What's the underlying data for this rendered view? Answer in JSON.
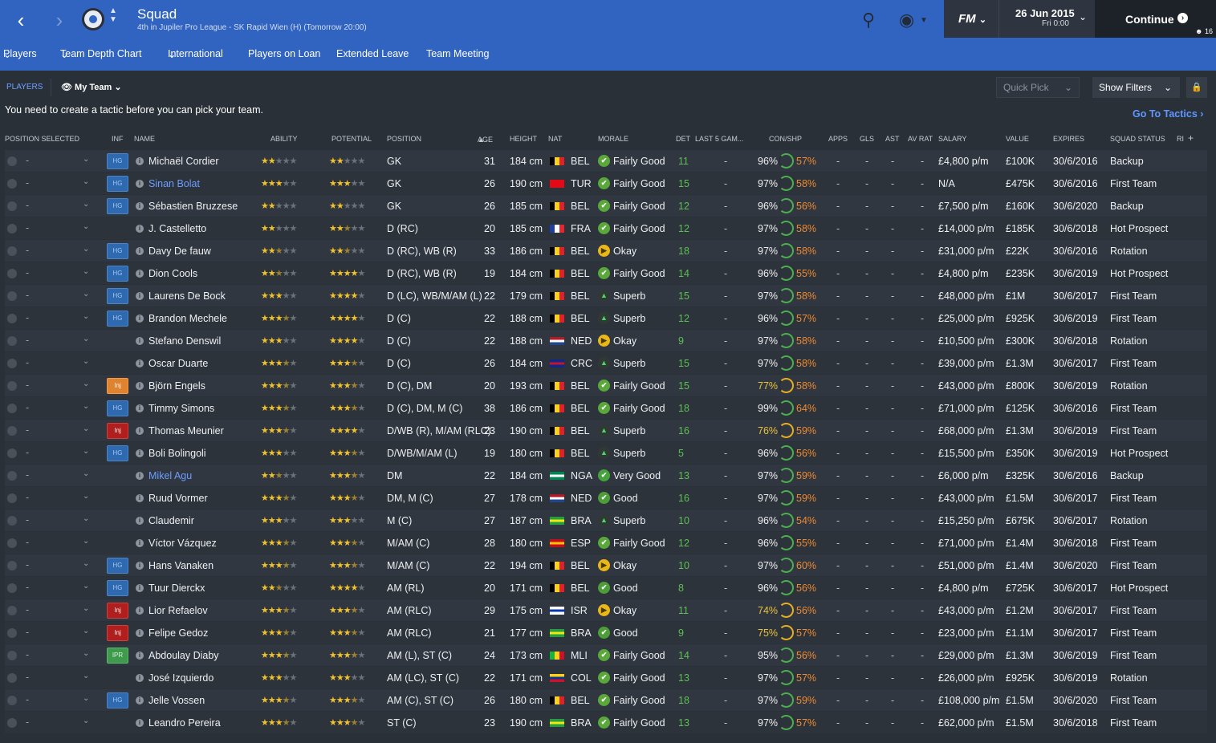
{
  "header": {
    "title": "Squad",
    "subtitle": "4th in Jupiler Pro League - SK Rapid Wien (H) (Tomorrow 20:00)",
    "fm_label": "FM",
    "date": "26 Jun 2015",
    "time": "Fri 0:00",
    "continue_label": "Continue",
    "inbox_count": "16"
  },
  "subnav": [
    "Players",
    "Team Depth Chart",
    "International",
    "Players on Loan",
    "Extended Leave",
    "Team Meeting"
  ],
  "filterbar": {
    "tab": "PLAYERS",
    "view": "My Team",
    "quick_pick": "Quick Pick",
    "show_filters": "Show Filters"
  },
  "notice": "You need to create a tactic before you can pick your team.",
  "go_to_tactics": "Go To Tactics",
  "columns": [
    "POSITION SELECTED",
    "INF",
    "NAME",
    "ABILITY",
    "POTENTIAL",
    "POSITION",
    "AGE",
    "HEIGHT",
    "NAT",
    "MORALE",
    "DET",
    "LAST 5 GAM...",
    "CON/SHP",
    "APPS",
    "GLS",
    "AST",
    "AV RAT",
    "SALARY",
    "VALUE",
    "EXPIRES",
    "SQUAD STATUS",
    "RI"
  ],
  "players": [
    {
      "inf": "HG",
      "name": "Michaël Cordier",
      "ability": 2,
      "potential": 2,
      "position": "GK",
      "age": "31",
      "height": "184 cm",
      "nat": "BEL",
      "morale": "Fairly Good",
      "det": "11",
      "con": "96%",
      "shp": "57%",
      "salary": "£4,800 p/m",
      "value": "£100K",
      "expires": "30/6/2016",
      "status": "Backup"
    },
    {
      "inf": "HG",
      "name": "Sinan Bolat",
      "link": true,
      "ability": 3,
      "potential": 3,
      "position": "GK",
      "age": "26",
      "height": "190 cm",
      "nat": "TUR",
      "morale": "Fairly Good",
      "det": "15",
      "con": "97%",
      "shp": "58%",
      "salary": "N/A",
      "value": "£475K",
      "expires": "30/6/2016",
      "status": "First Team"
    },
    {
      "inf": "HG",
      "name": "Sébastien Bruzzese",
      "ability": 2,
      "potential": 2,
      "position": "GK",
      "age": "26",
      "height": "185 cm",
      "nat": "BEL",
      "morale": "Fairly Good",
      "det": "12",
      "con": "96%",
      "shp": "56%",
      "salary": "£7,500 p/m",
      "value": "£160K",
      "expires": "30/6/2020",
      "status": "Backup"
    },
    {
      "inf": "",
      "name": "J. Castelletto",
      "ability": 2,
      "potential": 2.5,
      "position": "D (RC)",
      "age": "20",
      "height": "185 cm",
      "nat": "FRA",
      "morale": "Fairly Good",
      "det": "12",
      "con": "97%",
      "shp": "58%",
      "salary": "£14,000 p/m",
      "value": "£185K",
      "expires": "30/6/2018",
      "status": "Hot Prospect"
    },
    {
      "inf": "HG",
      "name": "Davy De fauw",
      "ability": 2.5,
      "potential": 2.5,
      "position": "D (RC), WB (R)",
      "age": "33",
      "height": "186 cm",
      "nat": "BEL",
      "morale": "Okay",
      "det": "18",
      "con": "97%",
      "shp": "58%",
      "salary": "£31,000 p/m",
      "value": "£22K",
      "expires": "30/6/2016",
      "status": "Rotation"
    },
    {
      "inf": "HG",
      "name": "Dion Cools",
      "ability": 2.5,
      "potential": 4,
      "position": "D (RC), WB (R)",
      "age": "19",
      "height": "184 cm",
      "nat": "BEL",
      "morale": "Fairly Good",
      "det": "14",
      "con": "96%",
      "shp": "55%",
      "salary": "£4,800 p/m",
      "value": "£235K",
      "expires": "30/6/2019",
      "status": "Hot Prospect"
    },
    {
      "inf": "HG",
      "name": "Laurens De Bock",
      "ability": 3,
      "potential": 4,
      "position": "D (LC), WB/M/AM (L)",
      "age": "22",
      "height": "179 cm",
      "nat": "BEL",
      "morale": "Superb",
      "det": "15",
      "con": "97%",
      "shp": "58%",
      "salary": "£48,000 p/m",
      "value": "£1M",
      "expires": "30/6/2017",
      "status": "First Team"
    },
    {
      "inf": "HG",
      "name": "Brandon Mechele",
      "ability": 3.5,
      "potential": 4,
      "position": "D (C)",
      "age": "22",
      "height": "188 cm",
      "nat": "BEL",
      "morale": "Superb",
      "det": "12",
      "con": "96%",
      "shp": "57%",
      "salary": "£25,000 p/m",
      "value": "£925K",
      "expires": "30/6/2019",
      "status": "First Team"
    },
    {
      "inf": "",
      "name": "Stefano Denswil",
      "ability": 3,
      "potential": 4,
      "position": "D (C)",
      "age": "22",
      "height": "188 cm",
      "nat": "NED",
      "morale": "Okay",
      "det": "9",
      "con": "97%",
      "shp": "58%",
      "salary": "£10,500 p/m",
      "value": "£300K",
      "expires": "30/6/2018",
      "status": "Rotation"
    },
    {
      "inf": "",
      "name": "Oscar Duarte",
      "ability": 3.5,
      "potential": 3.5,
      "position": "D (C)",
      "age": "26",
      "height": "184 cm",
      "nat": "CRC",
      "morale": "Superb",
      "det": "15",
      "con": "97%",
      "shp": "58%",
      "salary": "£39,000 p/m",
      "value": "£1.3M",
      "expires": "30/6/2017",
      "status": "First Team"
    },
    {
      "inf": "Inj",
      "injtype": "injo",
      "name": "Björn Engels",
      "ability": 3.5,
      "potential": 3.5,
      "position": "D (C), DM",
      "age": "20",
      "height": "193 cm",
      "nat": "BEL",
      "morale": "Fairly Good",
      "det": "15",
      "con": "77%",
      "conwarn": true,
      "shp": "58%",
      "salary": "£43,000 p/m",
      "value": "£800K",
      "expires": "30/6/2019",
      "status": "Rotation"
    },
    {
      "inf": "HG",
      "name": "Timmy Simons",
      "ability": 3.5,
      "potential": 3.5,
      "position": "D (C), DM, M (C)",
      "age": "38",
      "height": "186 cm",
      "nat": "BEL",
      "morale": "Fairly Good",
      "det": "18",
      "con": "99%",
      "shp": "64%",
      "salary": "£71,000 p/m",
      "value": "£125K",
      "expires": "30/6/2016",
      "status": "First Team"
    },
    {
      "inf": "Inj",
      "injtype": "inj",
      "name": "Thomas Meunier",
      "ability": 3.5,
      "potential": 4,
      "position": "D/WB (R), M/AM (RLC)",
      "age": "23",
      "height": "190 cm",
      "nat": "BEL",
      "morale": "Superb",
      "det": "16",
      "con": "76%",
      "conwarn": true,
      "shp": "59%",
      "salary": "£68,000 p/m",
      "value": "£1.3M",
      "expires": "30/6/2019",
      "status": "First Team"
    },
    {
      "inf": "HG",
      "name": "Boli Bolingoli",
      "ability": 3,
      "potential": 3.5,
      "position": "D/WB/M/AM (L)",
      "age": "19",
      "height": "180 cm",
      "nat": "BEL",
      "morale": "Superb",
      "det": "5",
      "con": "96%",
      "shp": "56%",
      "salary": "£15,500 p/m",
      "value": "£350K",
      "expires": "30/6/2019",
      "status": "Hot Prospect"
    },
    {
      "inf": "",
      "name": "Mikel Agu",
      "link": true,
      "ability": 2.5,
      "potential": 3.5,
      "position": "DM",
      "age": "22",
      "height": "184 cm",
      "nat": "NGA",
      "morale": "Very Good",
      "det": "13",
      "con": "97%",
      "shp": "59%",
      "salary": "£6,000 p/m",
      "value": "£325K",
      "expires": "30/6/2016",
      "status": "Backup"
    },
    {
      "inf": "",
      "name": "Ruud Vormer",
      "ability": 3.5,
      "potential": 3.5,
      "position": "DM, M (C)",
      "age": "27",
      "height": "178 cm",
      "nat": "NED",
      "morale": "Good",
      "det": "16",
      "con": "97%",
      "shp": "59%",
      "salary": "£43,000 p/m",
      "value": "£1.5M",
      "expires": "30/6/2017",
      "status": "First Team"
    },
    {
      "inf": "",
      "name": "Claudemir",
      "ability": 3,
      "potential": 3,
      "position": "M (C)",
      "age": "27",
      "height": "187 cm",
      "nat": "BRA",
      "morale": "Superb",
      "det": "10",
      "con": "96%",
      "shp": "54%",
      "salary": "£15,250 p/m",
      "value": "£675K",
      "expires": "30/6/2017",
      "status": "Rotation"
    },
    {
      "inf": "",
      "name": "Víctor Vázquez",
      "ability": 3.5,
      "potential": 3.5,
      "position": "M/AM (C)",
      "age": "28",
      "height": "180 cm",
      "nat": "ESP",
      "morale": "Fairly Good",
      "det": "12",
      "con": "96%",
      "shp": "55%",
      "salary": "£71,000 p/m",
      "value": "£1.4M",
      "expires": "30/6/2018",
      "status": "First Team"
    },
    {
      "inf": "HG",
      "name": "Hans Vanaken",
      "ability": 3.5,
      "potential": 3.5,
      "position": "M/AM (C)",
      "age": "22",
      "height": "194 cm",
      "nat": "BEL",
      "morale": "Okay",
      "det": "10",
      "con": "97%",
      "shp": "60%",
      "salary": "£51,000 p/m",
      "value": "£1.4M",
      "expires": "30/6/2020",
      "status": "First Team"
    },
    {
      "inf": "HG",
      "name": "Tuur Dierckx",
      "ability": 2.5,
      "potential": 4,
      "position": "AM (RL)",
      "age": "20",
      "height": "171 cm",
      "nat": "BEL",
      "morale": "Good",
      "det": "8",
      "con": "96%",
      "shp": "56%",
      "salary": "£4,800 p/m",
      "value": "£725K",
      "expires": "30/6/2017",
      "status": "Hot Prospect"
    },
    {
      "inf": "Inj",
      "injtype": "inj",
      "name": "Lior Refaelov",
      "ability": 3.5,
      "potential": 3.5,
      "position": "AM (RLC)",
      "age": "29",
      "height": "175 cm",
      "nat": "ISR",
      "morale": "Okay",
      "det": "11",
      "con": "74%",
      "conwarn": true,
      "shp": "56%",
      "salary": "£43,000 p/m",
      "value": "£1.2M",
      "expires": "30/6/2017",
      "status": "First Team"
    },
    {
      "inf": "Inj",
      "injtype": "inj",
      "name": "Felipe Gedoz",
      "ability": 3.5,
      "potential": 3.5,
      "position": "AM (RLC)",
      "age": "21",
      "height": "177 cm",
      "nat": "BRA",
      "morale": "Good",
      "det": "9",
      "con": "75%",
      "conwarn": true,
      "shp": "57%",
      "salary": "£23,000 p/m",
      "value": "£1.1M",
      "expires": "30/6/2017",
      "status": "First Team"
    },
    {
      "inf": "IPR",
      "injtype": "ipr",
      "name": "Abdoulay Diaby",
      "ability": 3.5,
      "potential": 3.5,
      "position": "AM (L), ST (C)",
      "age": "24",
      "height": "173 cm",
      "nat": "MLI",
      "morale": "Fairly Good",
      "det": "14",
      "con": "95%",
      "shp": "56%",
      "salary": "£29,000 p/m",
      "value": "£1.3M",
      "expires": "30/6/2019",
      "status": "First Team"
    },
    {
      "inf": "",
      "name": "José Izquierdo",
      "ability": 3,
      "potential": 3,
      "position": "AM (LC), ST (C)",
      "age": "22",
      "height": "171 cm",
      "nat": "COL",
      "morale": "Fairly Good",
      "det": "13",
      "con": "97%",
      "shp": "57%",
      "salary": "£26,000 p/m",
      "value": "£925K",
      "expires": "30/6/2019",
      "status": "Rotation"
    },
    {
      "inf": "HG",
      "name": "Jelle Vossen",
      "ability": 3.5,
      "potential": 3.5,
      "position": "AM (C), ST (C)",
      "age": "26",
      "height": "180 cm",
      "nat": "BEL",
      "morale": "Fairly Good",
      "det": "18",
      "con": "97%",
      "shp": "59%",
      "salary": "£108,000 p/m",
      "value": "£1.5M",
      "expires": "30/6/2020",
      "status": "First Team"
    },
    {
      "inf": "",
      "name": "Leandro Pereira",
      "ability": 3.5,
      "potential": 3.5,
      "position": "ST (C)",
      "age": "23",
      "height": "190 cm",
      "nat": "BRA",
      "morale": "Fairly Good",
      "det": "13",
      "con": "97%",
      "shp": "57%",
      "salary": "£62,000 p/m",
      "value": "£1.5M",
      "expires": "30/6/2018",
      "status": "First Team"
    }
  ],
  "flag_colors": {
    "BEL": [
      "#000000",
      "#f7d21b",
      "#e3202a"
    ],
    "TUR": [
      "#e30a17",
      "#e30a17",
      "#e30a17"
    ],
    "FRA": [
      "#1d3ea3",
      "#ffffff",
      "#e5262f"
    ],
    "NED": [
      "#ae1c28",
      "#ffffff",
      "#21468b"
    ],
    "CRC": [
      "#0b2a8a",
      "#ce1126",
      "#0b2a8a"
    ],
    "NGA": [
      "#008751",
      "#ffffff",
      "#008751"
    ],
    "BRA": [
      "#229e45",
      "#f8e509",
      "#229e45"
    ],
    "ESP": [
      "#c60b1e",
      "#ffc400",
      "#c60b1e"
    ],
    "ISR": [
      "#ffffff",
      "#0038b8",
      "#ffffff"
    ],
    "MLI": [
      "#14b53a",
      "#fcd116",
      "#ce1126"
    ],
    "COL": [
      "#fcd116",
      "#003893",
      "#ce1126"
    ]
  },
  "morale_icons": {
    "Fairly Good": "fair",
    "Okay": "okay",
    "Superb": "superb",
    "Very Good": "vgood",
    "Good": "good"
  },
  "dash": "-"
}
